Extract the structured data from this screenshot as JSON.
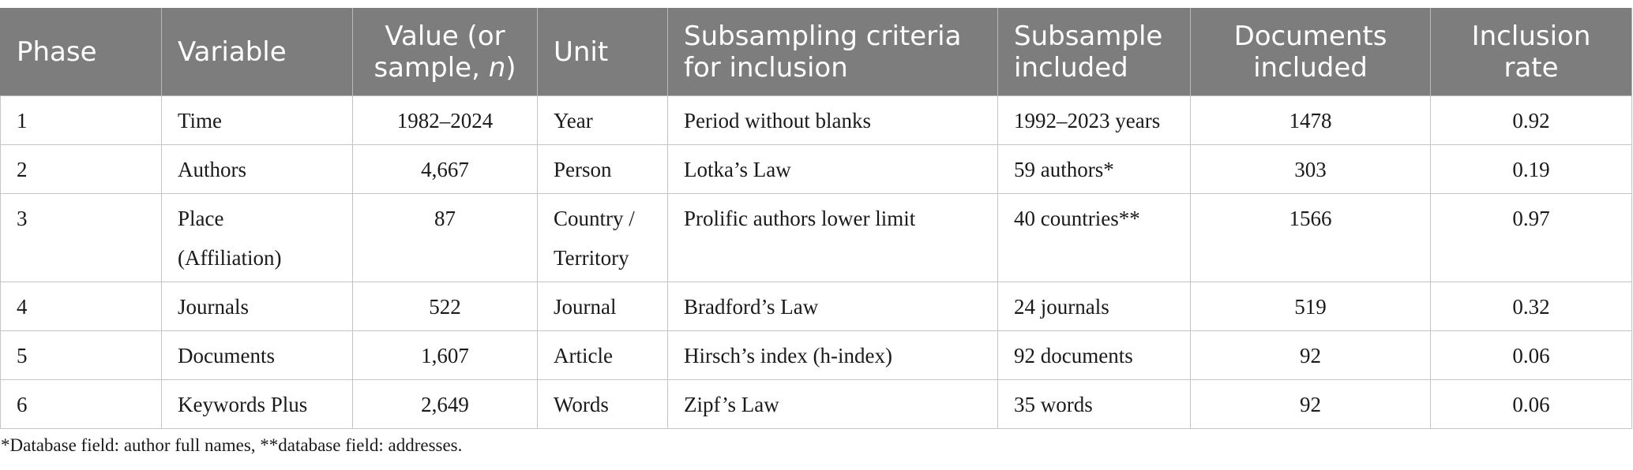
{
  "table": {
    "headers": {
      "phase": "Phase",
      "variable": "Variable",
      "value_line1": "Value (or",
      "value_line2_prefix": "sample, ",
      "value_line2_italic": "n",
      "value_line2_suffix": ")",
      "unit": "Unit",
      "criteria_line1": "Subsampling criteria",
      "criteria_line2": "for inclusion",
      "subsample_line1": "Subsample",
      "subsample_line2": "included",
      "documents_line1": "Documents",
      "documents_line2": "included",
      "rate_line1": "Inclusion",
      "rate_line2": "rate"
    },
    "rows": [
      {
        "phase": "1",
        "variable": "Time",
        "variable2": "",
        "value": "1982–2024",
        "unit": "Year",
        "unit2": "",
        "criteria": "Period without blanks",
        "subsample": "1992–2023 years",
        "documents": "1478",
        "rate": "0.92"
      },
      {
        "phase": "2",
        "variable": "Authors",
        "variable2": "",
        "value": "4,667",
        "unit": "Person",
        "unit2": "",
        "criteria": "Lotka’s Law",
        "subsample": "59 authors*",
        "documents": "303",
        "rate": "0.19"
      },
      {
        "phase": "3",
        "variable": "Place",
        "variable2": "(Affiliation)",
        "value": "87",
        "unit": "Country /",
        "unit2": "Territory",
        "criteria": "Prolific authors lower limit",
        "subsample": "40 countries**",
        "documents": "1566",
        "rate": "0.97"
      },
      {
        "phase": "4",
        "variable": "Journals",
        "variable2": "",
        "value": "522",
        "unit": "Journal",
        "unit2": "",
        "criteria": "Bradford’s Law",
        "subsample": "24 journals",
        "documents": "519",
        "rate": "0.32"
      },
      {
        "phase": "5",
        "variable": "Documents",
        "variable2": "",
        "value": "1,607",
        "unit": "Article",
        "unit2": "",
        "criteria": "Hirsch’s index (h-index)",
        "subsample": "92 documents",
        "documents": "92",
        "rate": "0.06"
      },
      {
        "phase": "6",
        "variable": "Keywords Plus",
        "variable2": "",
        "value": "2,649",
        "unit": "Words",
        "unit2": "",
        "criteria": "Zipf’s Law",
        "subsample": "35 words",
        "documents": "92",
        "rate": "0.06"
      }
    ]
  },
  "footnote": "*Database field: author full names, **database field: addresses.",
  "colors": {
    "header_background": "#7d7d7d",
    "header_text": "#ffffff",
    "border": "#c4c4c4"
  }
}
